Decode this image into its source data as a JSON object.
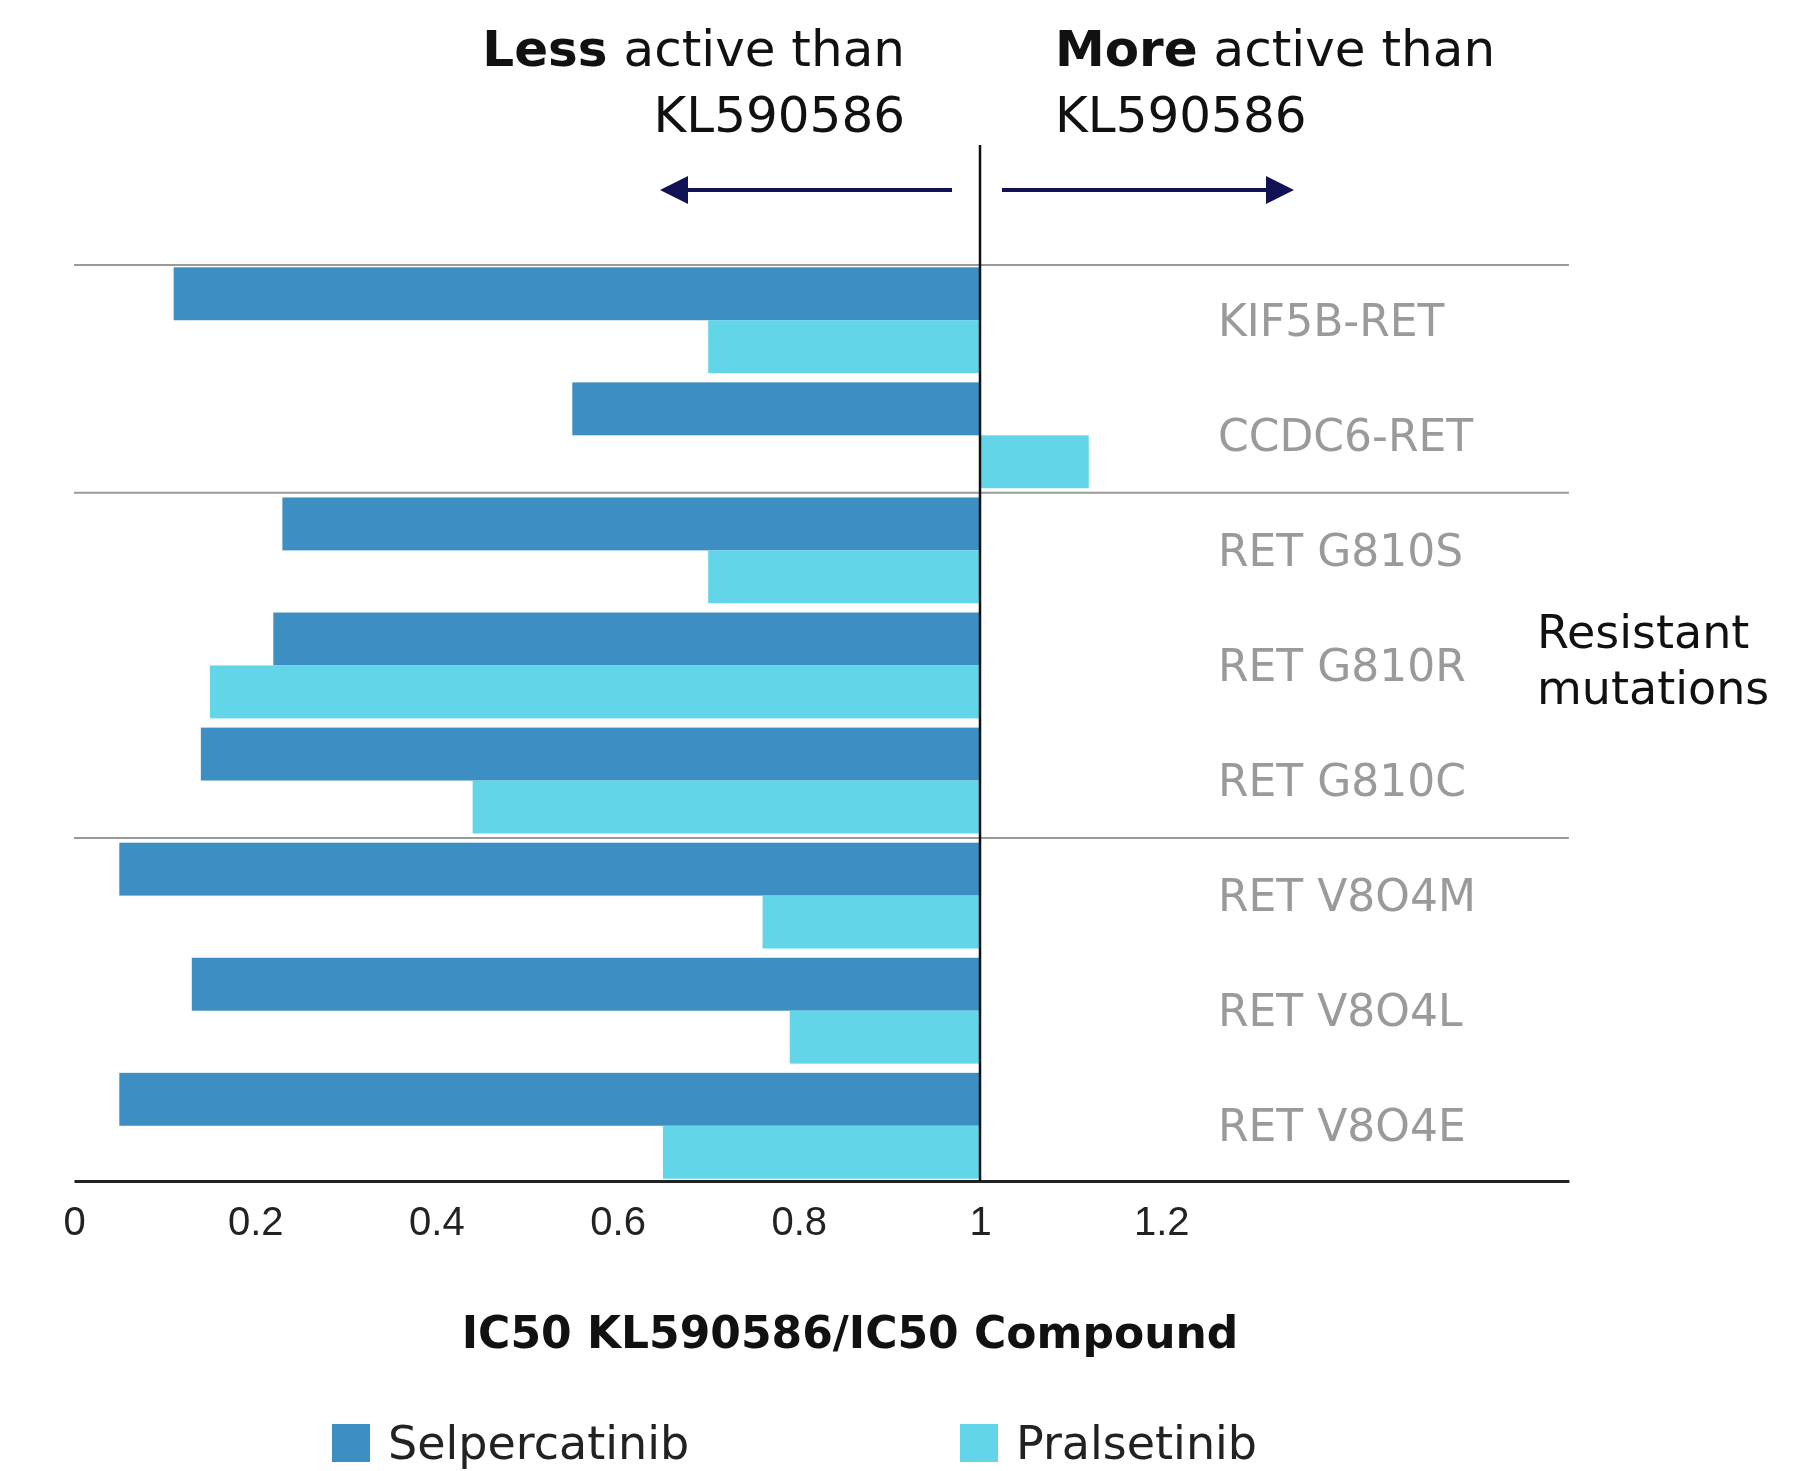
{
  "chart_data": {
    "type": "bar",
    "orientation": "horizontal",
    "xlabel": "IC50 KL590586/IC50 Compound",
    "categories": [
      "KIF5B-RET",
      "CCDC6-RET",
      "RET G810S",
      "RET G810R",
      "RET G810C",
      "RET V8O4M",
      "RET V8O4L",
      "RET V8O4E"
    ],
    "series": [
      {
        "name": "Selpercatinib",
        "color": "#3d8fc3",
        "base": [
          1,
          1,
          1,
          1,
          1,
          1,
          1,
          1
        ],
        "values": [
          -0.89,
          -0.45,
          -0.77,
          -0.78,
          -0.86,
          -0.95,
          -0.87,
          -0.95
        ]
      },
      {
        "name": "Pralsetinib",
        "color": "#62d5e8",
        "base": [
          1,
          1,
          1,
          1,
          1,
          1,
          1,
          1
        ],
        "values": [
          -0.3,
          0.12,
          -0.3,
          -0.85,
          -0.56,
          -0.24,
          -0.21,
          -0.35
        ]
      }
    ],
    "xlim": [
      0,
      1.65
    ],
    "xticks": [
      0,
      0.2,
      0.4,
      0.6,
      0.8,
      1,
      1.2
    ],
    "ref_lines": [
      {
        "axis": "x",
        "value": 1,
        "color": "#111111"
      }
    ],
    "annotations": [
      "Less active than KL590586",
      "More active than KL590586",
      "Resistant mutations"
    ],
    "legend": "bottom",
    "grid": false
  }
}
